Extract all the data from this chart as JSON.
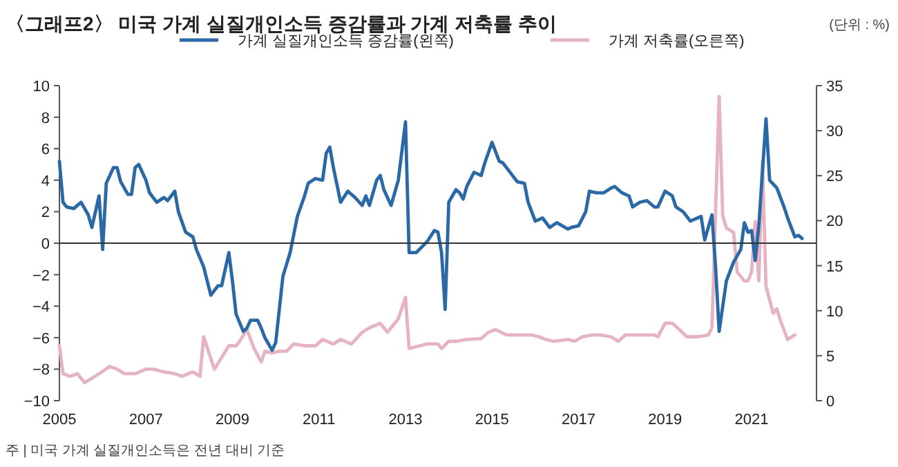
{
  "chart_data": {
    "type": "line",
    "title": "〈그래프2〉 미국 가계 실질개인소득 증감률과 가계 저축률 추이",
    "annotations": [
      "(단위 : %)",
      "주 | 미국 가계 실질개인소득은 전년 대비 기준"
    ],
    "xlim": [
      "2005-01",
      "2022-07"
    ],
    "xticks": [
      {
        "value": "2005-01",
        "label": "2005"
      },
      {
        "value": "2007-01",
        "label": "2007"
      },
      {
        "value": "2009-01",
        "label": "2009"
      },
      {
        "value": "2011-01",
        "label": "2011"
      },
      {
        "value": "2013-01",
        "label": "2013"
      },
      {
        "value": "2015-01",
        "label": "2015"
      },
      {
        "value": "2017-01",
        "label": "2017"
      },
      {
        "value": "2019-01",
        "label": "2019"
      },
      {
        "value": "2021-01",
        "label": "2021"
      }
    ],
    "ylim": [
      -10,
      10
    ],
    "yticks": [
      -10,
      -8,
      -6,
      -4,
      -2,
      0,
      2,
      4,
      6,
      8,
      10
    ],
    "y2lim": [
      0,
      35
    ],
    "y2ticks": [
      0,
      5,
      10,
      15,
      20,
      25,
      30,
      35
    ],
    "grid": false,
    "legend": "top",
    "line_style": "solid",
    "ref_lines": [
      {
        "axis": "y",
        "value": 0,
        "color": "#333333"
      }
    ],
    "series": [
      {
        "name": "가계 실질개인소득 증감률(왼쪽)",
        "color": "#2a68a6",
        "x": [
          "2005-01",
          "2005-02",
          "2005-03",
          "2005-05",
          "2005-07",
          "2005-09",
          "2005-10",
          "2005-12",
          "2006-01",
          "2006-02",
          "2006-04",
          "2006-05",
          "2006-06",
          "2006-08",
          "2006-09",
          "2006-10",
          "2006-11",
          "2007-01",
          "2007-02",
          "2007-04",
          "2007-06",
          "2007-07",
          "2007-09",
          "2007-10",
          "2007-12",
          "2008-02",
          "2008-03",
          "2008-05",
          "2008-07",
          "2008-09",
          "2008-10",
          "2008-12",
          "2009-01",
          "2009-02",
          "2009-04",
          "2009-05",
          "2009-06",
          "2009-08",
          "2009-09",
          "2009-10",
          "2009-12",
          "2010-01",
          "2010-03",
          "2010-05",
          "2010-07",
          "2010-09",
          "2010-10",
          "2010-12",
          "2011-02",
          "2011-03",
          "2011-04",
          "2011-05",
          "2011-07",
          "2011-09",
          "2011-11",
          "2012-01",
          "2012-02",
          "2012-03",
          "2012-05",
          "2012-06",
          "2012-07",
          "2012-09",
          "2012-11",
          "2013-01",
          "2013-02",
          "2013-04",
          "2013-07",
          "2013-09",
          "2013-10",
          "2013-11",
          "2013-12",
          "2014-01",
          "2014-03",
          "2014-04",
          "2014-05",
          "2014-06",
          "2014-08",
          "2014-10",
          "2014-11",
          "2015-01",
          "2015-03",
          "2015-04",
          "2015-06",
          "2015-08",
          "2015-10",
          "2015-11",
          "2016-01",
          "2016-03",
          "2016-05",
          "2016-07",
          "2016-10",
          "2016-11",
          "2017-01",
          "2017-03",
          "2017-04",
          "2017-06",
          "2017-08",
          "2017-10",
          "2017-11",
          "2018-01",
          "2018-03",
          "2018-04",
          "2018-06",
          "2018-08",
          "2018-10",
          "2018-11",
          "2019-01",
          "2019-03",
          "2019-04",
          "2019-06",
          "2019-08",
          "2019-10",
          "2019-11",
          "2019-12",
          "2020-02",
          "2020-03",
          "2020-04",
          "2020-06",
          "2020-08",
          "2020-10",
          "2020-11",
          "2020-12",
          "2021-01",
          "2021-02",
          "2021-03",
          "2021-05",
          "2021-06",
          "2021-08",
          "2021-10",
          "2021-11",
          "2022-01",
          "2022-02",
          "2022-03"
        ],
        "values": [
          5.2,
          2.6,
          2.3,
          2.2,
          2.6,
          1.8,
          1.0,
          3.0,
          -0.4,
          3.8,
          4.8,
          4.8,
          3.9,
          3.1,
          3.1,
          4.8,
          5.0,
          4.0,
          3.2,
          2.6,
          2.9,
          2.7,
          3.3,
          2.0,
          0.7,
          0.4,
          -0.4,
          -1.5,
          -3.3,
          -2.7,
          -2.7,
          -0.6,
          -2.4,
          -4.5,
          -5.6,
          -5.4,
          -4.9,
          -4.9,
          -5.4,
          -6.0,
          -6.8,
          -6.3,
          -2.1,
          -0.6,
          1.7,
          3.0,
          3.8,
          4.1,
          4.0,
          5.7,
          6.1,
          4.8,
          2.6,
          3.3,
          2.9,
          2.4,
          3.0,
          2.4,
          4.0,
          4.3,
          3.4,
          2.4,
          4.0,
          7.7,
          -0.6,
          -0.6,
          0.1,
          0.8,
          0.7,
          -0.6,
          -4.2,
          2.6,
          3.4,
          3.2,
          2.8,
          3.6,
          4.5,
          4.3,
          5.1,
          6.4,
          5.2,
          5.1,
          4.5,
          3.9,
          3.8,
          2.6,
          1.4,
          1.6,
          1.0,
          1.3,
          0.9,
          1.0,
          1.1,
          2.0,
          3.3,
          3.2,
          3.2,
          3.5,
          3.6,
          3.2,
          3.0,
          2.3,
          2.6,
          2.7,
          2.3,
          2.3,
          3.3,
          3.0,
          2.3,
          2.0,
          1.4,
          1.6,
          1.7,
          0.2,
          1.8,
          -1.5,
          -5.6,
          -2.4,
          -1.2,
          -0.4,
          1.3,
          0.7,
          0.8,
          -1.1,
          1.1,
          7.9,
          4.0,
          3.5,
          2.3,
          1.6,
          0.4,
          0.5,
          0.3
        ]
      },
      {
        "name": "가계 저축률(오른쪽)",
        "color": "#e6b3c3",
        "axis": "y2",
        "x": [
          "2005-01",
          "2005-02",
          "2005-04",
          "2005-06",
          "2005-08",
          "2005-10",
          "2005-12",
          "2006-03",
          "2006-05",
          "2006-07",
          "2006-10",
          "2007-01",
          "2007-03",
          "2007-06",
          "2007-09",
          "2007-11",
          "2008-02",
          "2008-04",
          "2008-05",
          "2008-08",
          "2008-10",
          "2008-12",
          "2009-02",
          "2009-03",
          "2009-05",
          "2009-07",
          "2009-09",
          "2009-10",
          "2009-12",
          "2010-02",
          "2010-04",
          "2010-06",
          "2010-09",
          "2010-12",
          "2011-02",
          "2011-05",
          "2011-07",
          "2011-10",
          "2012-01",
          "2012-03",
          "2012-06",
          "2012-08",
          "2012-11",
          "2013-01",
          "2013-02",
          "2013-05",
          "2013-07",
          "2013-10",
          "2013-11",
          "2014-01",
          "2014-03",
          "2014-06",
          "2014-10",
          "2014-12",
          "2015-02",
          "2015-05",
          "2015-09",
          "2015-12",
          "2016-02",
          "2016-04",
          "2016-06",
          "2016-10",
          "2016-12",
          "2017-02",
          "2017-05",
          "2017-07",
          "2017-10",
          "2017-12",
          "2018-02",
          "2018-06",
          "2018-10",
          "2018-11",
          "2019-01",
          "2019-03",
          "2019-05",
          "2019-07",
          "2019-10",
          "2020-01",
          "2020-02",
          "2020-04",
          "2020-05",
          "2020-06",
          "2020-08",
          "2020-09",
          "2020-11",
          "2020-12",
          "2021-01",
          "2021-02",
          "2021-03",
          "2021-04",
          "2021-05",
          "2021-07",
          "2021-08",
          "2021-09",
          "2021-11",
          "2022-01"
        ],
        "values": [
          6.1,
          3.0,
          2.7,
          3.0,
          2.0,
          2.5,
          3.0,
          3.8,
          3.5,
          3.0,
          3.0,
          3.5,
          3.5,
          3.2,
          3.0,
          2.7,
          3.2,
          2.7,
          7.1,
          3.5,
          4.8,
          6.1,
          6.1,
          6.6,
          7.9,
          5.8,
          4.3,
          5.5,
          5.3,
          5.5,
          5.5,
          6.3,
          6.1,
          6.1,
          6.8,
          6.3,
          6.8,
          6.3,
          7.6,
          8.1,
          8.6,
          7.6,
          9.1,
          11.5,
          5.8,
          6.1,
          6.3,
          6.3,
          5.8,
          6.6,
          6.6,
          6.8,
          6.9,
          7.6,
          7.9,
          7.3,
          7.3,
          7.3,
          7.1,
          6.8,
          6.6,
          6.8,
          6.6,
          7.1,
          7.3,
          7.3,
          7.1,
          6.6,
          7.3,
          7.3,
          7.3,
          7.1,
          8.6,
          8.6,
          7.9,
          7.1,
          7.1,
          7.3,
          8.1,
          33.8,
          20.5,
          19.2,
          18.7,
          14.3,
          13.3,
          13.3,
          14.3,
          19.9,
          13.3,
          26.6,
          12.7,
          9.7,
          10.2,
          8.9,
          6.8,
          7.3
        ]
      }
    ]
  }
}
